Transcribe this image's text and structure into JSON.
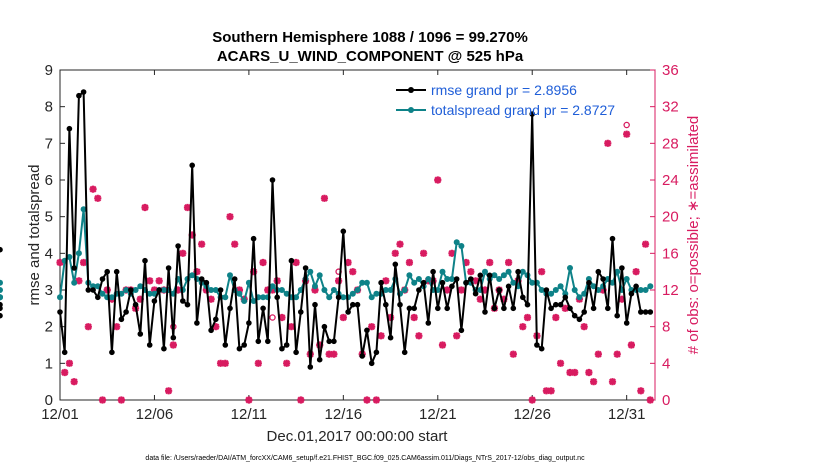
{
  "chart_data": {
    "type": "line",
    "title_line1": "Southern Hemisphere 1088 / 1096 = 99.270%",
    "title_line2": "ACARS_U_WIND_COMPONENT @ 525 hPa",
    "xlabel": "Dec.01,2017 00:00:00 start",
    "ylabel": "rmse and totalspread",
    "y2label": "# of obs: o=possible; ∗=assimilated",
    "footer": "data file: /Users/raeder/DAI/ATM_forcXX/CAM6_setup/f.e21.FHIST_BGC.f09_025.CAM6assim.011/Diags_NTrS_2017-12/obs_diag_output.nc",
    "xlim": [
      0,
      31.5
    ],
    "ylim": [
      0,
      9
    ],
    "y2lim": [
      0,
      36
    ],
    "xticks": [
      0,
      5,
      10,
      15,
      20,
      25,
      30
    ],
    "xtick_labels": [
      "12/01",
      "12/06",
      "12/11",
      "12/16",
      "12/21",
      "12/26",
      "12/31"
    ],
    "yticks": [
      0,
      1,
      2,
      3,
      4,
      5,
      6,
      7,
      8,
      9
    ],
    "y2ticks": [
      0,
      4,
      8,
      12,
      16,
      20,
      24,
      28,
      32,
      36
    ],
    "colors": {
      "rmse": "#000000",
      "spread": "#0e8288",
      "obs": "#d81b60",
      "legend_text": "#1f5ed8",
      "right_axis": "#d81b60"
    },
    "series": [
      {
        "name": "rmse grand pr = 2.8956",
        "values": [
          2.4,
          1.3,
          7.4,
          3.6,
          8.3,
          8.4,
          3.0,
          3.0,
          2.8,
          3.3,
          3.5,
          1.3,
          3.5,
          2.2,
          2.4,
          3.0,
          2.6,
          1.8,
          3.8,
          1.5,
          2.7,
          3.0,
          1.4,
          3.6,
          1.7,
          4.2,
          2.7,
          2.6,
          6.4,
          2.1,
          3.3,
          3.2,
          1.9,
          2.2,
          3.0,
          1.5,
          2.5,
          3.3,
          1.4,
          1.5,
          2.1,
          4.4,
          1.6,
          2.5,
          1.6,
          6.0,
          2.8,
          1.4,
          1.5,
          3.8,
          1.3,
          2.4,
          3.6,
          0.9,
          2.6,
          1.1,
          2.0,
          1.6,
          1.6,
          2.8,
          4.6,
          2.4,
          2.6,
          2.6,
          1.2,
          1.9,
          1.0,
          1.3,
          3.2,
          2.6,
          1.7,
          3.7,
          2.6,
          1.3,
          2.5,
          2.5,
          3.0,
          3.2,
          2.1,
          3.5,
          2.5,
          3.2,
          2.5,
          3.1,
          3.3,
          1.9,
          3.2,
          3.3,
          2.9,
          3.4,
          2.4,
          3.4,
          2.5,
          3.0,
          2.5,
          3.1,
          2.5,
          3.5,
          2.8,
          2.6,
          7.8,
          1.5,
          1.4,
          3.0,
          2.5,
          2.6,
          2.6,
          2.8,
          2.5,
          2.3,
          2.2,
          2.4,
          3.2,
          2.5,
          3.5,
          3.3,
          2.5,
          4.4,
          2.3,
          3.6,
          2.1,
          2.9,
          3.1,
          2.4,
          2.4,
          2.4,
          2.3,
          2.6,
          2.5,
          4.1
        ]
      },
      {
        "name": "totalspread grand pr = 2.8727",
        "values": [
          2.8,
          3.8,
          3.9,
          3.2,
          4.0,
          5.2,
          3.2,
          3.1,
          3.1,
          2.9,
          2.8,
          2.8,
          2.9,
          2.9,
          3.0,
          2.9,
          3.0,
          3.1,
          3.0,
          2.9,
          2.9,
          3.0,
          3.0,
          3.0,
          2.9,
          3.3,
          3.0,
          3.3,
          3.4,
          3.3,
          3.2,
          3.1,
          3.0,
          3.0,
          2.8,
          2.8,
          3.4,
          3.0,
          2.9,
          2.7,
          3.2,
          2.7,
          2.8,
          2.8,
          2.8,
          3.1,
          3.0,
          3.0,
          2.9,
          2.8,
          2.8,
          3.0,
          3.3,
          3.5,
          3.1,
          3.4,
          3.0,
          2.8,
          3.0,
          2.9,
          2.8,
          2.8,
          2.9,
          3.0,
          3.2,
          3.2,
          2.8,
          2.9,
          2.9,
          3.0,
          3.0,
          3.3,
          2.9,
          3.0,
          3.4,
          3.2,
          3.3,
          3.1,
          3.3,
          3.0,
          3.0,
          3.5,
          3.3,
          3.3,
          4.3,
          4.2,
          3.2,
          3.2,
          3.0,
          3.0,
          3.5,
          3.3,
          3.4,
          3.3,
          3.4,
          3.5,
          3.2,
          3.1,
          3.5,
          3.4,
          3.2,
          3.2,
          3.0,
          2.9,
          2.9,
          3.0,
          3.1,
          2.9,
          3.6,
          3.0,
          2.8,
          2.9,
          3.3,
          3.1,
          3.0,
          3.1,
          3.3,
          3.2,
          3.5,
          3.0,
          3.3,
          3.0,
          3.0,
          3.0,
          3.0,
          3.1,
          3.2,
          2.8,
          2.8,
          2.8,
          3.0
        ]
      }
    ],
    "obs_count_series": {
      "name": "# of obs",
      "x": [
        0.0,
        0.25,
        0.5,
        0.75,
        1.0,
        1.25,
        1.5,
        1.75,
        2.0,
        2.25,
        2.5,
        2.75,
        3.0,
        3.25,
        3.5,
        3.75,
        4.0,
        4.25,
        4.5,
        4.75,
        5.0,
        5.25,
        5.5,
        5.75,
        6.0,
        6.25,
        6.5,
        6.75,
        7.0,
        7.25,
        7.5,
        7.75,
        8.0,
        8.25,
        8.5,
        8.75,
        9.0,
        9.25,
        9.5,
        9.75,
        10.0,
        10.25,
        10.5,
        10.75,
        11.0,
        11.25,
        11.5,
        11.75,
        12.0,
        12.25,
        12.5,
        12.75,
        13.0,
        13.25,
        13.5,
        13.75,
        14.0,
        14.25,
        14.5,
        14.75,
        15.0,
        15.25,
        15.5,
        15.75,
        16.0,
        16.25,
        16.5,
        16.75,
        17.0,
        17.25,
        17.5,
        17.75,
        18.0,
        18.25,
        18.5,
        18.75,
        19.0,
        19.25,
        19.5,
        19.75,
        20.0,
        20.25,
        20.5,
        20.75,
        21.0,
        21.25,
        21.5,
        21.75,
        22.0,
        22.25,
        22.5,
        22.75,
        23.0,
        23.25,
        23.5,
        23.75,
        24.0,
        24.25,
        24.5,
        24.75,
        25.0,
        25.25,
        25.5,
        25.75,
        26.0,
        26.25,
        26.5,
        26.75,
        27.0,
        27.25,
        27.5,
        27.75,
        28.0,
        28.25,
        28.5,
        28.75,
        29.0,
        29.25,
        29.5,
        29.75,
        30.0,
        30.25,
        30.5,
        30.75,
        31.0,
        31.25
      ],
      "assimilated": [
        15,
        3,
        4,
        2,
        13,
        15,
        8,
        23,
        22,
        0,
        12,
        11,
        8,
        0,
        12,
        12,
        10,
        11,
        21,
        13,
        12,
        13,
        12,
        1,
        6,
        12,
        16,
        21,
        18,
        14,
        17,
        12,
        11,
        8,
        4,
        4,
        20,
        17,
        12,
        11,
        0,
        14,
        4,
        15,
        12,
        12,
        13,
        9,
        4,
        8,
        15,
        0,
        13,
        5,
        12,
        6,
        22,
        5,
        5,
        13,
        9,
        15,
        14,
        12,
        5,
        0,
        8,
        0,
        7,
        13,
        9,
        16,
        17,
        12,
        15,
        9,
        7,
        16,
        13,
        13,
        24,
        6,
        12,
        16,
        7,
        12,
        15,
        14,
        13,
        11,
        12,
        15,
        10,
        12,
        11,
        15,
        5,
        13,
        8,
        9,
        0,
        7,
        14,
        1,
        1,
        9,
        4,
        10,
        3,
        3,
        11,
        8,
        3,
        2,
        5,
        12,
        28,
        2,
        5,
        11,
        29,
        6,
        14,
        1,
        17,
        0
      ],
      "possible": [
        15,
        3,
        4,
        2,
        13,
        15,
        8,
        23,
        22,
        0,
        12,
        11,
        8,
        0,
        12,
        12,
        10,
        11,
        21,
        13,
        12,
        13,
        12,
        1,
        8,
        12,
        16,
        21,
        18,
        14,
        17,
        12,
        11,
        8,
        4,
        4,
        20,
        17,
        12,
        11,
        0,
        14,
        4,
        15,
        12,
        9,
        13,
        9,
        4,
        8,
        15,
        0,
        13,
        5,
        12,
        6,
        22,
        5,
        5,
        14,
        9,
        15,
        14,
        12,
        5,
        0,
        8,
        0,
        7,
        13,
        9,
        16,
        17,
        12,
        15,
        9,
        7,
        16,
        13,
        13,
        24,
        6,
        12,
        16,
        7,
        12,
        15,
        14,
        13,
        11,
        12,
        15,
        10,
        12,
        11,
        15,
        5,
        13,
        8,
        9,
        0,
        7,
        14,
        1,
        1,
        9,
        4,
        10,
        3,
        3,
        11,
        8,
        3,
        2,
        5,
        12,
        28,
        2,
        5,
        11,
        30,
        6,
        14,
        1,
        17,
        0
      ]
    }
  }
}
